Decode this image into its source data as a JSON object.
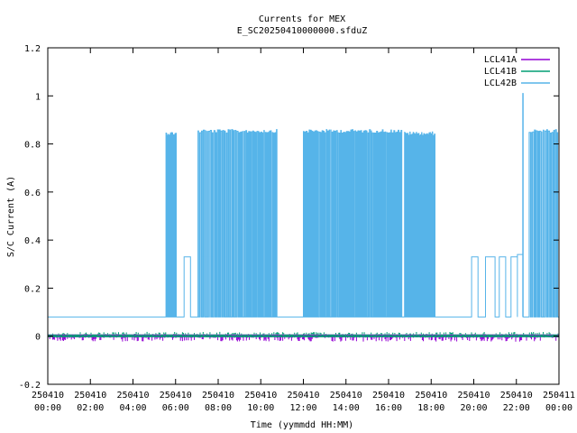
{
  "chart_data": {
    "type": "line",
    "title": "Currents for MEX",
    "subtitle": "E_SC20250410000000.sfduZ",
    "xlabel": "Time (yymmdd HH:MM)",
    "ylabel": "S/C Current (A)",
    "ylim": [
      -0.2,
      1.2
    ],
    "xlim_hours": [
      0,
      24
    ],
    "y_ticks": [
      "-0.2",
      "0",
      "0.2",
      "0.4",
      "0.6",
      "0.8",
      "1",
      "1.2"
    ],
    "x_ticks": [
      {
        "date": "250410",
        "time": "00:00"
      },
      {
        "date": "250410",
        "time": "02:00"
      },
      {
        "date": "250410",
        "time": "04:00"
      },
      {
        "date": "250410",
        "time": "06:00"
      },
      {
        "date": "250410",
        "time": "08:00"
      },
      {
        "date": "250410",
        "time": "10:00"
      },
      {
        "date": "250410",
        "time": "12:00"
      },
      {
        "date": "250410",
        "time": "14:00"
      },
      {
        "date": "250410",
        "time": "16:00"
      },
      {
        "date": "250410",
        "time": "18:00"
      },
      {
        "date": "250410",
        "time": "20:00"
      },
      {
        "date": "250410",
        "time": "22:00"
      },
      {
        "date": "250411",
        "time": "00:00"
      }
    ],
    "grid": false,
    "legend_position": "top-right",
    "series": [
      {
        "name": "LCL41A",
        "color": "#9400d3",
        "baseline": 0.0
      },
      {
        "name": "LCL41B",
        "color": "#009e73",
        "baseline": 0.0
      },
      {
        "name": "LCL42B",
        "color": "#56b4e9",
        "baseline": 0.08,
        "pulse_blocks": [
          {
            "start": 5.55,
            "end": 6.05,
            "high": 0.85,
            "density": 2.5
          },
          {
            "start": 7.05,
            "end": 9.3,
            "high": 0.86,
            "density": 5
          },
          {
            "start": 9.3,
            "end": 10.8,
            "high": 0.86,
            "density": 4
          },
          {
            "start": 12.0,
            "end": 15.1,
            "high": 0.86,
            "density": 4
          },
          {
            "start": 15.1,
            "end": 16.65,
            "high": 0.86,
            "density": 4
          },
          {
            "start": 16.75,
            "end": 18.2,
            "high": 0.85,
            "density": 3
          },
          {
            "start": 22.6,
            "end": 24.0,
            "high": 0.86,
            "density": 5
          }
        ],
        "plateaus": [
          {
            "start": 6.4,
            "end": 6.7,
            "level": 0.33
          },
          {
            "start": 19.9,
            "end": 20.2,
            "level": 0.33
          },
          {
            "start": 20.55,
            "end": 21.0,
            "level": 0.33
          },
          {
            "start": 21.2,
            "end": 21.5,
            "level": 0.33
          },
          {
            "start": 21.75,
            "end": 22.05,
            "level": 0.33
          },
          {
            "start": 22.05,
            "end": 22.3,
            "level": 0.34
          }
        ],
        "spikes": [
          {
            "t": 22.3,
            "value": 1.01
          }
        ]
      }
    ]
  }
}
